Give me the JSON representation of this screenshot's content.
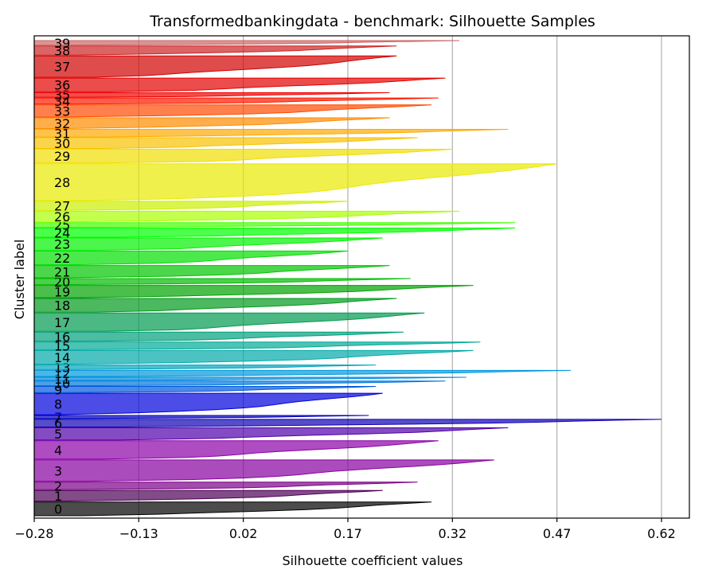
{
  "chart_data": {
    "type": "silhouette",
    "title": "Transformedbankingdata - benchmark: Silhouette Samples",
    "xlabel": "Silhouette coefficient values",
    "ylabel": "Cluster label",
    "xlim": [
      -0.28,
      0.66
    ],
    "xticks": [
      -0.28,
      -0.13,
      0.02,
      0.17,
      0.32,
      0.47,
      0.62
    ],
    "xtick_labels": [
      "−0.28",
      "−0.13",
      "0.02",
      "0.17",
      "0.32",
      "0.47",
      "0.62"
    ],
    "grid": "x",
    "clusters": [
      {
        "label": "0",
        "size": 9,
        "max": 0.29,
        "color": "#000000"
      },
      {
        "label": "1",
        "size": 7,
        "max": 0.22,
        "color": "#4d0055"
      },
      {
        "label": "2",
        "size": 5,
        "max": 0.27,
        "color": "#7a0088"
      },
      {
        "label": "3",
        "size": 14,
        "max": 0.38,
        "color": "#8800a0"
      },
      {
        "label": "4",
        "size": 12,
        "max": 0.3,
        "color": "#8c00a8"
      },
      {
        "label": "5",
        "size": 8,
        "max": 0.4,
        "color": "#4e00aa"
      },
      {
        "label": "6",
        "size": 5,
        "max": 0.62,
        "color": "#1000b4"
      },
      {
        "label": "7",
        "size": 2,
        "max": 0.2,
        "color": "#0000c0"
      },
      {
        "label": "8",
        "size": 14,
        "max": 0.22,
        "color": "#0000dd"
      },
      {
        "label": "9",
        "size": 4,
        "max": 0.21,
        "color": "#0058dd"
      },
      {
        "label": "10",
        "size": 3,
        "max": 0.31,
        "color": "#0078dd"
      },
      {
        "label": "11",
        "size": 2,
        "max": 0.34,
        "color": "#008cdd"
      },
      {
        "label": "12",
        "size": 4,
        "max": 0.49,
        "color": "#0099dd"
      },
      {
        "label": "13",
        "size": 3,
        "max": 0.21,
        "color": "#00a4bc"
      },
      {
        "label": "14",
        "size": 9,
        "max": 0.35,
        "color": "#00aaa8"
      },
      {
        "label": "15",
        "size": 5,
        "max": 0.36,
        "color": "#00aa96"
      },
      {
        "label": "16",
        "size": 6,
        "max": 0.25,
        "color": "#00a07a"
      },
      {
        "label": "17",
        "size": 12,
        "max": 0.28,
        "color": "#009a50"
      },
      {
        "label": "18",
        "size": 9,
        "max": 0.24,
        "color": "#009a1c"
      },
      {
        "label": "19",
        "size": 8,
        "max": 0.35,
        "color": "#00a200"
      },
      {
        "label": "20",
        "size": 4,
        "max": 0.26,
        "color": "#00bc00"
      },
      {
        "label": "21",
        "size": 8,
        "max": 0.23,
        "color": "#00c400"
      },
      {
        "label": "22",
        "size": 9,
        "max": 0.17,
        "color": "#00e000"
      },
      {
        "label": "23",
        "size": 8,
        "max": 0.22,
        "color": "#00f200"
      },
      {
        "label": "24",
        "size": 6,
        "max": 0.41,
        "color": "#00ff00"
      },
      {
        "label": "25",
        "size": 3,
        "max": 0.41,
        "color": "#44ff00"
      },
      {
        "label": "26",
        "size": 7,
        "max": 0.33,
        "color": "#aaff00"
      },
      {
        "label": "27",
        "size": 6,
        "max": 0.17,
        "color": "#ccf000"
      },
      {
        "label": "28",
        "size": 24,
        "max": 0.47,
        "color": "#eaea00"
      },
      {
        "label": "29",
        "size": 9,
        "max": 0.32,
        "color": "#f0de00"
      },
      {
        "label": "30",
        "size": 7,
        "max": 0.27,
        "color": "#f8c200"
      },
      {
        "label": "31",
        "size": 5,
        "max": 0.4,
        "color": "#ffaa00"
      },
      {
        "label": "32",
        "size": 7,
        "max": 0.23,
        "color": "#ff8c00"
      },
      {
        "label": "33",
        "size": 8,
        "max": 0.29,
        "color": "#ff4a00"
      },
      {
        "label": "34",
        "size": 4,
        "max": 0.3,
        "color": "#ff1800"
      },
      {
        "label": "35",
        "size": 3,
        "max": 0.23,
        "color": "#f00000"
      },
      {
        "label": "36",
        "size": 9,
        "max": 0.31,
        "color": "#e20000"
      },
      {
        "label": "37",
        "size": 14,
        "max": 0.24,
        "color": "#d00000"
      },
      {
        "label": "38",
        "size": 6,
        "max": 0.24,
        "color": "#cc2222"
      },
      {
        "label": "39",
        "size": 3,
        "max": 0.33,
        "color": "#cc6666"
      }
    ]
  }
}
